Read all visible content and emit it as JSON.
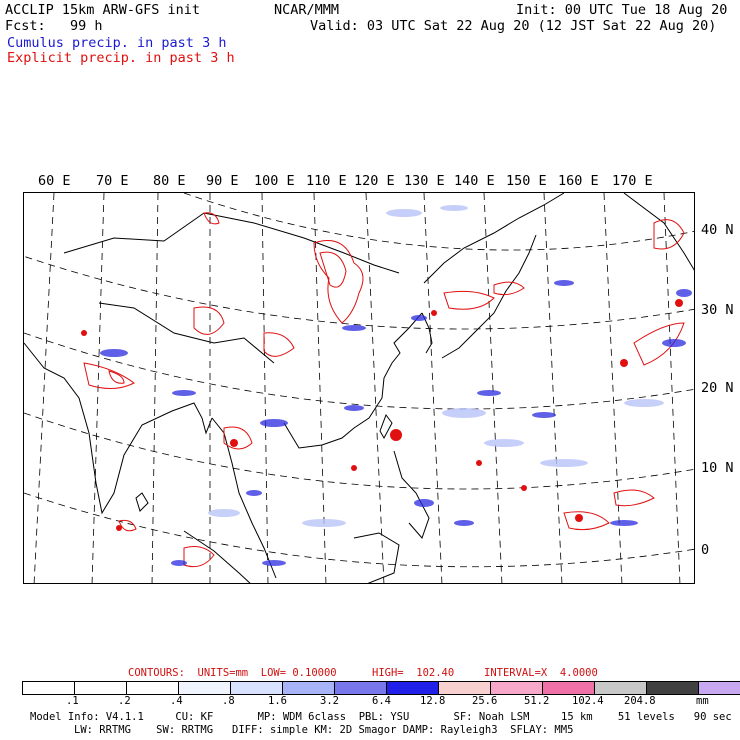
{
  "header": {
    "title": "ACCLIP 15km ARW-GFS init",
    "center": "NCAR/MMM",
    "init": "Init: 00 UTC Tue 18 Aug 20",
    "fcst": "Fcst:   99 h",
    "valid": "Valid: 03 UTC Sat 22 Aug 20 (12 JST Sat 22 Aug 20)",
    "legend_cumulus": "Cumulus precip. in past 3 h",
    "legend_explicit": "Explicit precip. in past 3 h"
  },
  "colors": {
    "cumulus": "#1a1ad0",
    "explicit": "#e01010",
    "coast": "#000000",
    "grid": "#000000"
  },
  "map": {
    "lon_labels": [
      "60 E",
      "70 E",
      "80 E",
      "90 E",
      "100 E",
      "110 E",
      "120 E",
      "130 E",
      "140 E",
      "150 E",
      "160 E",
      "170 E"
    ],
    "lat_labels": [
      "40 N",
      "30 N",
      "20 N",
      "10 N",
      "0"
    ]
  },
  "contours_line": {
    "contours": "CONTOURS:  UNITS=mm  LOW= 0.10000",
    "high": "HIGH=  102.40",
    "interval": "INTERVAL=X  4.0000"
  },
  "colorbar": {
    "colors": [
      "#ffffff",
      "#ffffff",
      "#ffffff",
      "#f0f4ff",
      "#d8e2ff",
      "#a8b4f8",
      "#7878ec",
      "#2020e8",
      "#f8d0d0",
      "#f8a8c8",
      "#f070a8",
      "#c8c8c8",
      "#404040",
      "#c8a8f0"
    ],
    "ticks": [
      ".1",
      ".2",
      ".4",
      ".8",
      "1.6",
      "3.2",
      "6.4",
      "12.8",
      "25.6",
      "51.2",
      "102.4",
      "204.8"
    ],
    "units": "mm"
  },
  "model_info": {
    "line1": "Model Info: V4.1.1     CU: KF       MP: WDM 6class  PBL: YSU       SF: Noah LSM     15 km    51 levels   90 sec",
    "line2": "LW: RRTMG    SW: RRTMG   DIFF: simple KM: 2D Smagor DAMP: Rayleigh3  SFLAY: MM5"
  }
}
